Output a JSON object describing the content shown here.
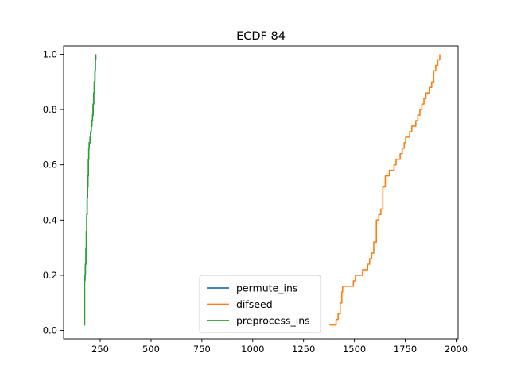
{
  "chart_data": {
    "type": "line",
    "title": "ECDF 84",
    "xlabel": "",
    "ylabel": "",
    "xlim": [
      70,
      2010
    ],
    "ylim": [
      -0.03,
      1.03
    ],
    "xticks": [
      250,
      500,
      750,
      1000,
      1250,
      1500,
      1750,
      2000
    ],
    "yticks": [
      0.0,
      0.2,
      0.4,
      0.6,
      0.8,
      1.0
    ],
    "xtick_labels": [
      "250",
      "500",
      "750",
      "1000",
      "1250",
      "1500",
      "1750",
      "2000"
    ],
    "ytick_labels": [
      "0.0",
      "0.2",
      "0.4",
      "0.6",
      "0.8",
      "1.0"
    ],
    "grid": false,
    "legend_position": "lower center",
    "series": [
      {
        "name": "permute_ins",
        "color": "#1f77b4",
        "x": [
          172,
          173,
          175,
          177,
          180,
          182,
          184,
          186,
          188,
          190,
          192,
          194,
          196,
          198,
          200,
          203,
          206,
          209,
          212,
          215,
          218,
          221,
          224,
          226,
          228
        ],
        "y": [
          0.02,
          0.18,
          0.2,
          0.24,
          0.3,
          0.36,
          0.42,
          0.48,
          0.52,
          0.56,
          0.62,
          0.66,
          0.68,
          0.68,
          0.7,
          0.72,
          0.74,
          0.76,
          0.78,
          0.82,
          0.86,
          0.9,
          0.94,
          0.98,
          1.0
        ]
      },
      {
        "name": "difseed",
        "color": "#ff7f0e",
        "x": [
          1378,
          1398,
          1410,
          1420,
          1430,
          1438,
          1442,
          1448,
          1460,
          1480,
          1495,
          1505,
          1515,
          1525,
          1540,
          1555,
          1565,
          1575,
          1585,
          1595,
          1608,
          1620,
          1630,
          1640,
          1652,
          1662,
          1672,
          1682,
          1695,
          1705,
          1715,
          1725,
          1735,
          1745,
          1752,
          1762,
          1772,
          1782,
          1792,
          1802,
          1812,
          1822,
          1832,
          1842,
          1852,
          1860,
          1870,
          1880,
          1890,
          1900,
          1910,
          1920
        ],
        "y": [
          0.02,
          0.02,
          0.04,
          0.06,
          0.1,
          0.14,
          0.16,
          0.16,
          0.16,
          0.16,
          0.18,
          0.2,
          0.2,
          0.2,
          0.22,
          0.22,
          0.24,
          0.26,
          0.28,
          0.32,
          0.4,
          0.42,
          0.44,
          0.52,
          0.56,
          0.56,
          0.58,
          0.58,
          0.6,
          0.62,
          0.62,
          0.64,
          0.66,
          0.68,
          0.7,
          0.7,
          0.72,
          0.74,
          0.74,
          0.76,
          0.78,
          0.8,
          0.82,
          0.84,
          0.86,
          0.86,
          0.88,
          0.9,
          0.94,
          0.96,
          0.98,
          1.0
        ]
      },
      {
        "name": "preprocess_ins",
        "color": "#2ca02c",
        "x": [
          172,
          173,
          175,
          177,
          180,
          182,
          184,
          186,
          188,
          190,
          192,
          194,
          196,
          198,
          200,
          203,
          206,
          209,
          212,
          215,
          218,
          221,
          224,
          226,
          228
        ],
        "y": [
          0.02,
          0.18,
          0.2,
          0.24,
          0.3,
          0.36,
          0.42,
          0.48,
          0.52,
          0.56,
          0.62,
          0.66,
          0.68,
          0.68,
          0.7,
          0.72,
          0.74,
          0.76,
          0.78,
          0.82,
          0.86,
          0.9,
          0.94,
          0.98,
          1.0
        ]
      }
    ]
  }
}
